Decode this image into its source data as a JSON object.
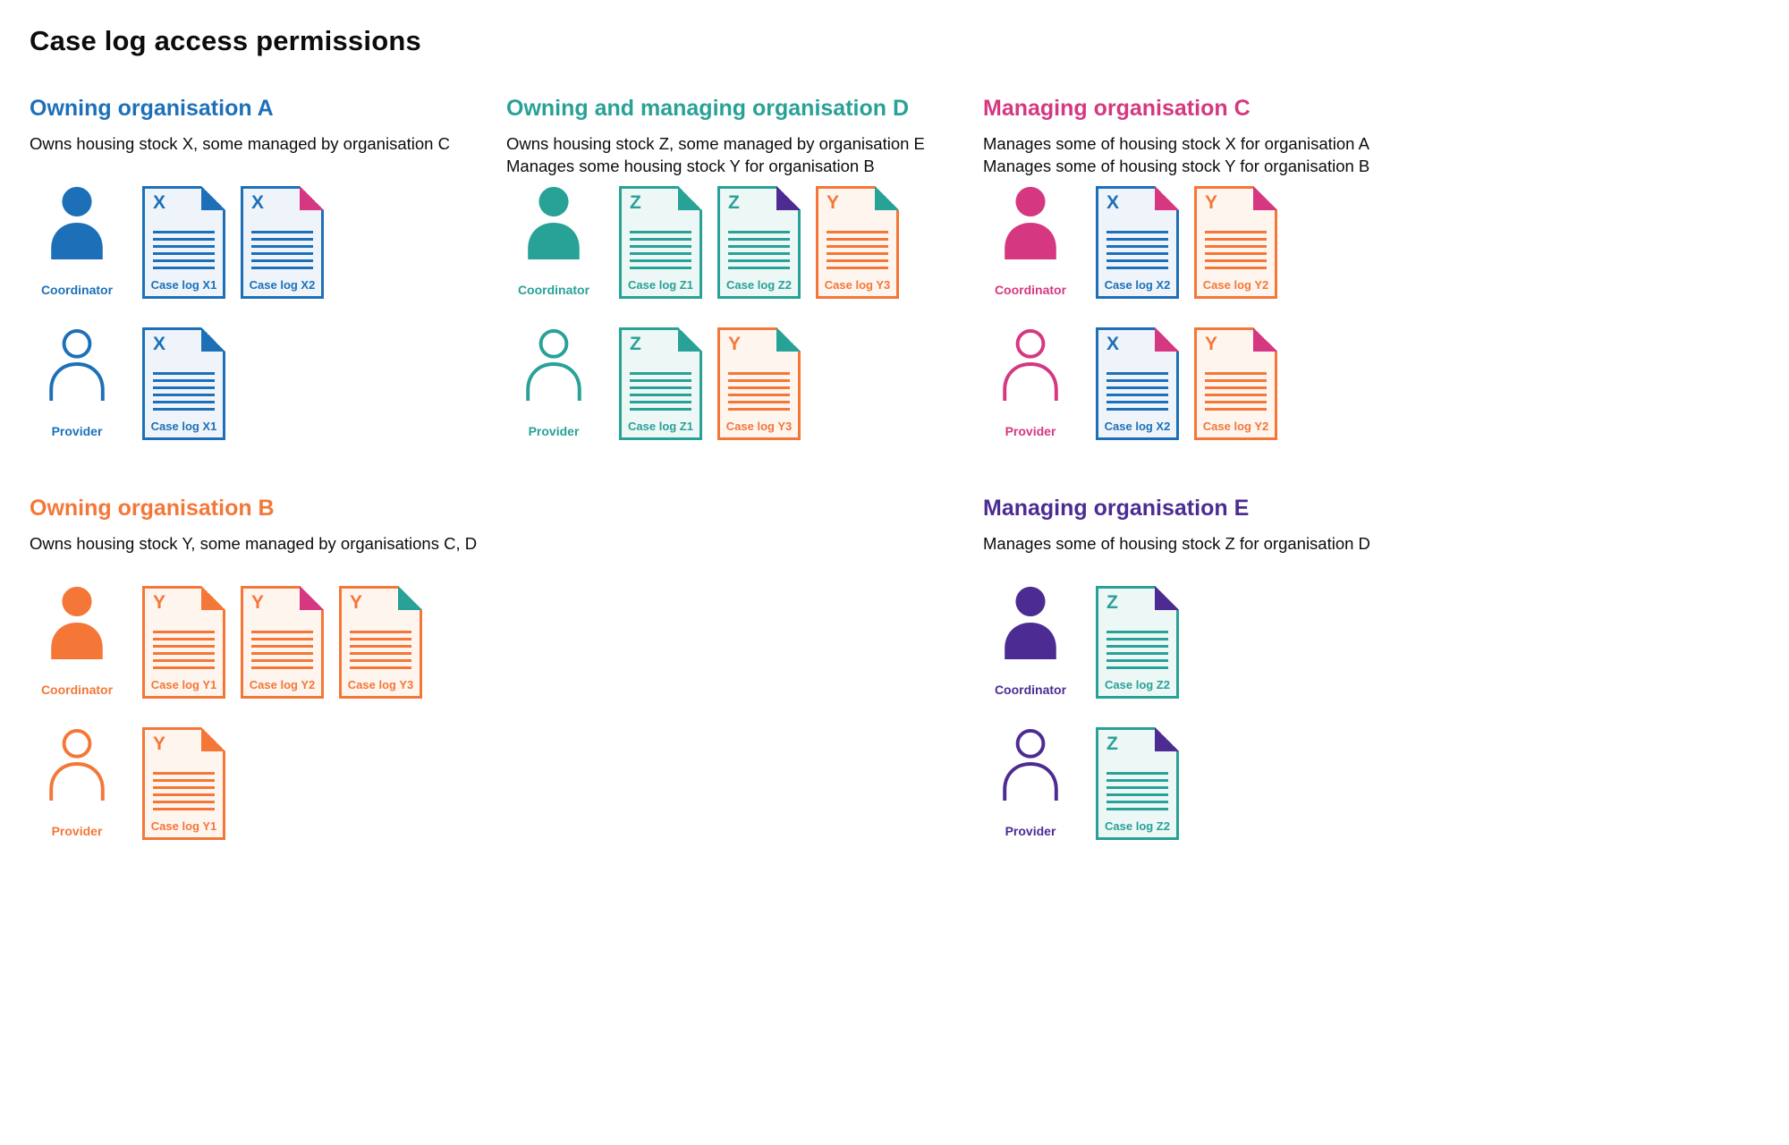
{
  "title": "Case log access permissions",
  "palette": {
    "blue": {
      "main": "#1d70b8",
      "bg": "#eef4fa"
    },
    "teal": {
      "main": "#28a197",
      "bg": "#edf8f6"
    },
    "pink": {
      "main": "#d53880",
      "bg": "#fdf0f6"
    },
    "orange": {
      "main": "#f47738",
      "bg": "#fef5ef"
    },
    "purple": {
      "main": "#4c2c92",
      "bg": "#f1eef8"
    }
  },
  "role_labels": {
    "coordinator": "Coordinator",
    "provider": "Provider"
  },
  "sections": [
    {
      "id": "org-a",
      "title": "Owning organisation A",
      "color": "blue",
      "description": [
        "Owns housing stock X, some managed by organisation C"
      ],
      "roles": [
        {
          "role": "Coordinator",
          "style": "filled",
          "docs": [
            {
              "letter": "X",
              "label": "Case log X1",
              "color": "blue",
              "fold": "blue"
            },
            {
              "letter": "X",
              "label": "Case log X2",
              "color": "blue",
              "fold": "pink"
            }
          ]
        },
        {
          "role": "Provider",
          "style": "outline",
          "docs": [
            {
              "letter": "X",
              "label": "Case log X1",
              "color": "blue",
              "fold": "blue"
            }
          ]
        }
      ]
    },
    {
      "id": "org-d",
      "title": "Owning and managing organisation D",
      "color": "teal",
      "description": [
        "Owns housing stock Z, some managed by organisation E",
        "Manages some housing stock Y for organisation B"
      ],
      "roles": [
        {
          "role": "Coordinator",
          "style": "filled",
          "docs": [
            {
              "letter": "Z",
              "label": "Case log Z1",
              "color": "teal",
              "fold": "teal"
            },
            {
              "letter": "Z",
              "label": "Case log Z2",
              "color": "teal",
              "fold": "purple"
            },
            {
              "letter": "Y",
              "label": "Case log Y3",
              "color": "orange",
              "fold": "teal"
            }
          ]
        },
        {
          "role": "Provider",
          "style": "outline",
          "docs": [
            {
              "letter": "Z",
              "label": "Case log Z1",
              "color": "teal",
              "fold": "teal"
            },
            {
              "letter": "Y",
              "label": "Case log Y3",
              "color": "orange",
              "fold": "teal"
            }
          ]
        }
      ]
    },
    {
      "id": "org-c",
      "title": "Managing organisation C",
      "color": "pink",
      "description": [
        "Manages some of housing stock X for organisation A",
        "Manages some of housing stock Y for organisation B"
      ],
      "roles": [
        {
          "role": "Coordinator",
          "style": "filled",
          "docs": [
            {
              "letter": "X",
              "label": "Case log X2",
              "color": "blue",
              "fold": "pink"
            },
            {
              "letter": "Y",
              "label": "Case log Y2",
              "color": "orange",
              "fold": "pink"
            }
          ]
        },
        {
          "role": "Provider",
          "style": "outline",
          "docs": [
            {
              "letter": "X",
              "label": "Case log X2",
              "color": "blue",
              "fold": "pink"
            },
            {
              "letter": "Y",
              "label": "Case log Y2",
              "color": "orange",
              "fold": "pink"
            }
          ]
        }
      ]
    },
    {
      "id": "org-b",
      "title": "Owning organisation B",
      "color": "orange",
      "description": [
        "Owns housing stock Y, some managed by organisations C, D"
      ],
      "roles": [
        {
          "role": "Coordinator",
          "style": "filled",
          "docs": [
            {
              "letter": "Y",
              "label": "Case log Y1",
              "color": "orange",
              "fold": "orange"
            },
            {
              "letter": "Y",
              "label": "Case log Y2",
              "color": "orange",
              "fold": "pink"
            },
            {
              "letter": "Y",
              "label": "Case log Y3",
              "color": "orange",
              "fold": "teal"
            }
          ]
        },
        {
          "role": "Provider",
          "style": "outline",
          "docs": [
            {
              "letter": "Y",
              "label": "Case log Y1",
              "color": "orange",
              "fold": "orange"
            }
          ]
        }
      ]
    },
    {
      "id": "org-e",
      "title": "Managing organisation E",
      "color": "purple",
      "description": [
        "Manages some of housing stock Z for organisation D"
      ],
      "roles": [
        {
          "role": "Coordinator",
          "style": "filled",
          "docs": [
            {
              "letter": "Z",
              "label": "Case log Z2",
              "color": "teal",
              "fold": "purple"
            }
          ]
        },
        {
          "role": "Provider",
          "style": "outline",
          "docs": [
            {
              "letter": "Z",
              "label": "Case log Z2",
              "color": "teal",
              "fold": "purple"
            }
          ]
        }
      ]
    }
  ]
}
